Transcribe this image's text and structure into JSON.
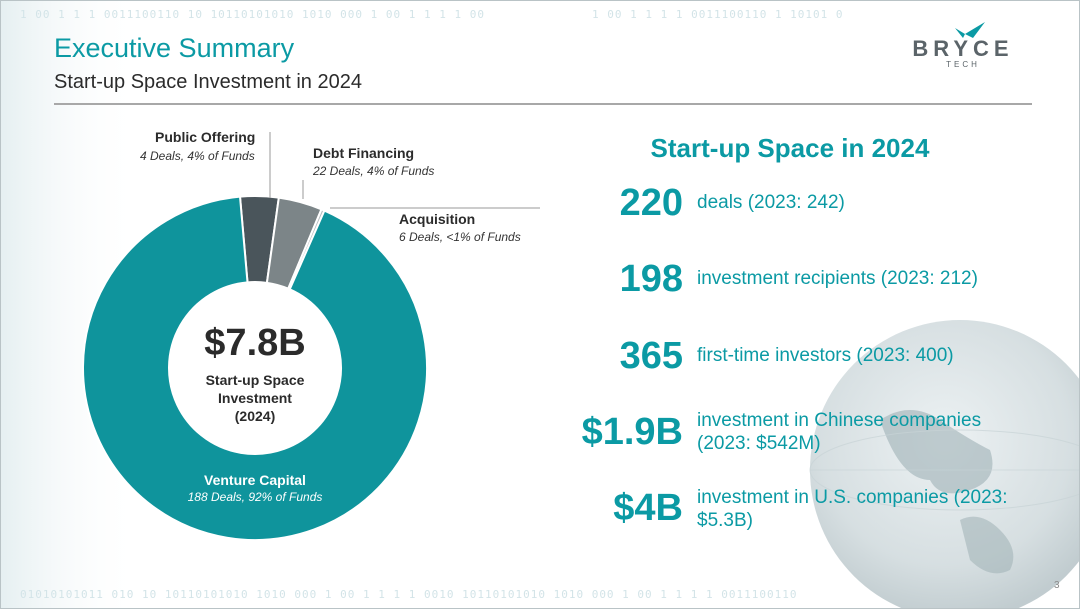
{
  "header": {
    "title": "Executive Summary",
    "subtitle": "Start-up Space Investment in 2024",
    "logo_word": "BRYCE",
    "logo_sub": "TECH"
  },
  "background_text": [
    "1 00 1 1 1 0011100110 10 10110101010 1010 000 1 00 1 1 1 1 00",
    "1 00 1 1 1 1 0011100110 1 10101 0",
    "01010101011 010 10 10110101010 1010 000 1 00 1 1 1 1 0010 10110101010 1010 000 1 00 1 1 1 1 0011100110"
  ],
  "colors": {
    "teal": "#0b9aa4",
    "donut_teal": "#0f949c",
    "dark_gray": "#4a555b",
    "mid_gray": "#7c8588",
    "light_gray": "#b7bdc0"
  },
  "chart_data": {
    "type": "pie",
    "style": "donut",
    "title": "Start-up Space Investment (2024)",
    "total_label": "$7.8B",
    "center_caption": [
      "Start-up Space",
      "Investment",
      "(2024)"
    ],
    "slices": [
      {
        "name": "Public Offering",
        "detail": "4 Deals, 4% of Funds",
        "deals": 4,
        "percent_funds": 3.6
      },
      {
        "name": "Debt Financing",
        "detail": "22 Deals, 4% of Funds",
        "deals": 22,
        "percent_funds": 4.1
      },
      {
        "name": "Acquisition",
        "detail": "6 Deals, <1% of Funds",
        "deals": 6,
        "percent_funds": 0.3
      },
      {
        "name": "Venture Capital",
        "detail": "188 Deals, 92% of Funds",
        "deals": 188,
        "percent_funds": 92.0
      }
    ]
  },
  "stats": {
    "title": "Start-up Space in 2024",
    "items": [
      {
        "value": "220",
        "text": "deals (2023: 242)"
      },
      {
        "value": "198",
        "text": "investment recipients (2023: 212)"
      },
      {
        "value": "365",
        "text": "first-time investors (2023: 400)"
      },
      {
        "value": "$1.9B",
        "text": "investment in Chinese companies (2023: $542M)"
      },
      {
        "value": "$4B",
        "text": "investment in U.S. companies (2023: $5.3B)"
      }
    ]
  },
  "page_number": "3"
}
